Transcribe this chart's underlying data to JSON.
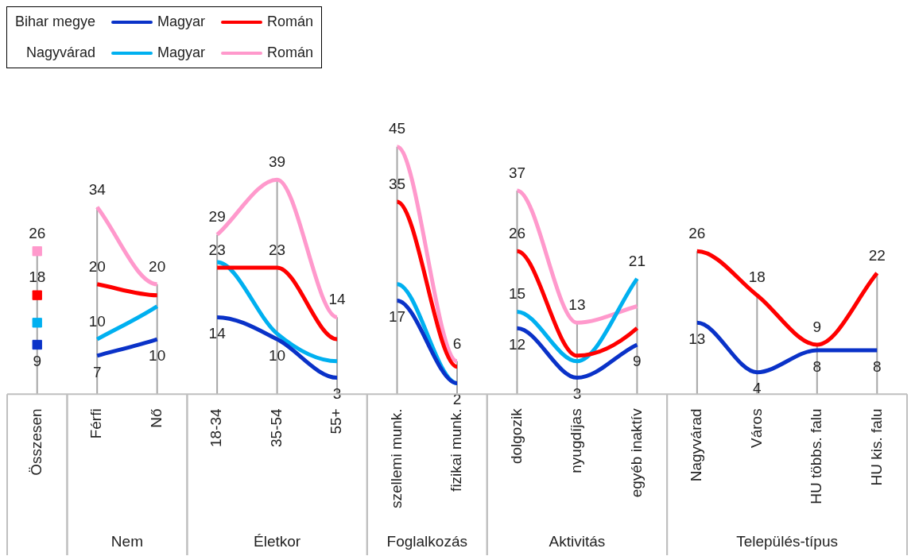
{
  "chart_data": {
    "type": "line",
    "categories": [
      "Összesen",
      "Férfi",
      "Nő",
      "18-34",
      "35-54",
      "55+",
      "szellemi munk.",
      "fizikai munk.",
      "dolgozik",
      "nyugdíjas",
      "egyéb inaktív",
      "Nagyvárad",
      "Város",
      "HU többs. falu",
      "HU kis. falu"
    ],
    "series": [
      {
        "name": "Magyar",
        "color": "#0a32c8",
        "values": [
          null,
          7,
          10,
          14,
          10,
          3,
          17,
          2,
          12,
          3,
          9,
          13,
          4,
          8,
          8
        ],
        "value_labels": [
          null,
          "7",
          "10",
          "14",
          "10",
          "3",
          "17",
          "2",
          "12",
          "3",
          "9",
          "13",
          "4",
          "8",
          "8"
        ]
      },
      {
        "name": "Román",
        "color": "#ff0000",
        "values": [
          null,
          20,
          18,
          23,
          23,
          10,
          35,
          5,
          26,
          7,
          12,
          26,
          18,
          9,
          22
        ],
        "value_labels": [
          null,
          "20",
          null,
          "23",
          "23",
          null,
          "35",
          null,
          "26",
          null,
          null,
          "26",
          "18",
          "9",
          "22"
        ]
      },
      {
        "name": "Magyar",
        "color": "#00b0f0",
        "values": [
          null,
          10,
          16,
          24,
          11,
          6,
          20,
          2,
          15,
          6,
          21,
          null,
          null,
          null,
          null
        ],
        "value_labels": [
          null,
          "10",
          null,
          null,
          null,
          null,
          null,
          null,
          "15",
          null,
          "21",
          null,
          null,
          null,
          null
        ]
      },
      {
        "name": "Román",
        "color": "#ff99cc",
        "values": [
          null,
          34,
          20,
          29,
          39,
          14,
          45,
          6,
          37,
          13,
          16,
          null,
          null,
          null,
          null
        ],
        "value_labels": [
          null,
          "34",
          "20",
          "29",
          "39",
          "14",
          "45",
          "6",
          "37",
          "13",
          null,
          null,
          null,
          null,
          null
        ]
      },
      {
        "type": "scatter",
        "color": "#0a32c8",
        "x": [
          "Összesen"
        ],
        "values": [
          9
        ],
        "value_labels": [
          "9"
        ]
      },
      {
        "type": "scatter",
        "color": "#ff0000",
        "x": [
          "Összesen"
        ],
        "values": [
          18
        ],
        "value_labels": [
          "18"
        ]
      },
      {
        "type": "scatter",
        "color": "#00b0f0",
        "x": [
          "Összesen"
        ],
        "values": [
          13
        ],
        "value_labels": [
          null
        ]
      },
      {
        "type": "scatter",
        "color": "#ff99cc",
        "x": [
          "Összesen"
        ],
        "values": [
          26
        ],
        "value_labels": [
          "26"
        ]
      }
    ],
    "tick_labels": "x",
    "grid": "x",
    "legend": "top left",
    "annotations": [
      "Bihar megye",
      "Nagyvárad",
      "Nem",
      "Életkor",
      "Foglalkozás",
      "Aktivitás",
      "Település-típus"
    ]
  }
}
